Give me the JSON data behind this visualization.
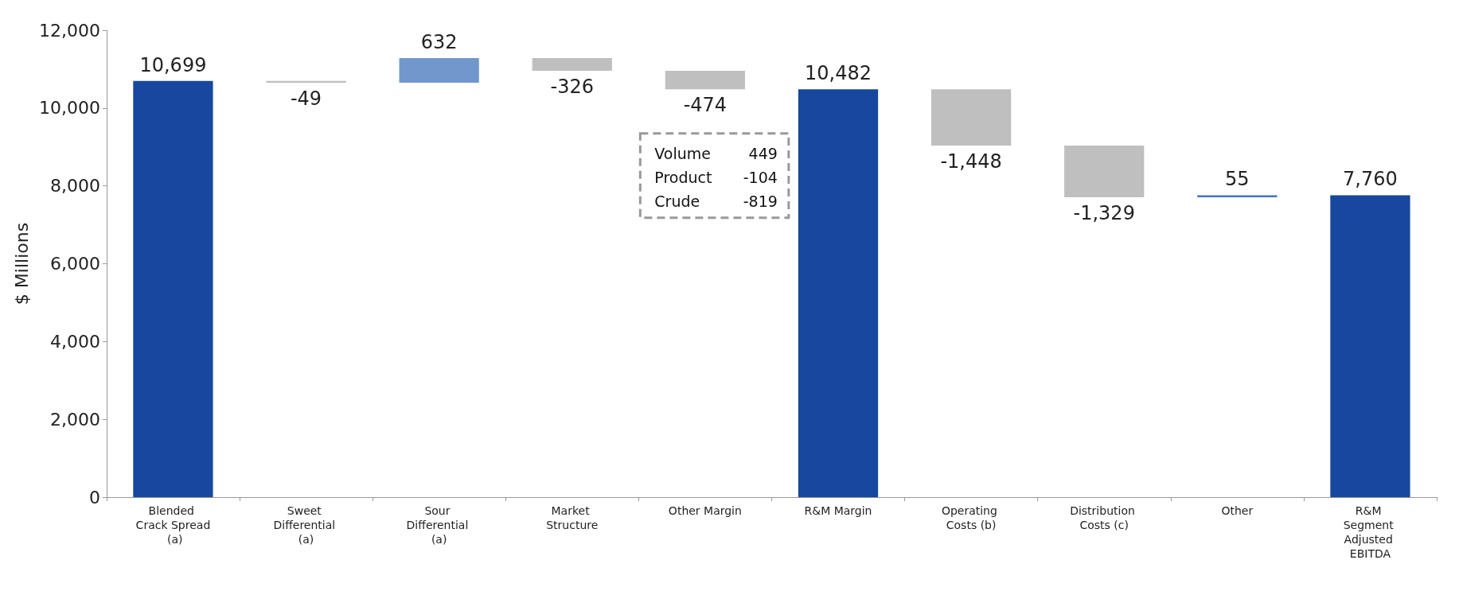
{
  "chart_data": {
    "type": "bar",
    "ylabel": "$ Millions",
    "categories": [
      "Blended Crack Spread (a)",
      "Sweet Differential (a)",
      "Sour Differential (a)",
      "Market Structure",
      "Other Margin",
      "R&M Margin",
      "Operating Costs (b)",
      "Distribution Costs (c)",
      "Other",
      "R&M Segment Adjusted EBITDA"
    ],
    "values": [
      10699,
      -49,
      632,
      -326,
      -474,
      10482,
      -1448,
      -1329,
      55,
      7760
    ],
    "base": [
      0,
      10699,
      10650,
      11282,
      10956,
      0,
      10482,
      9034,
      7705,
      0
    ],
    "colors": [
      "#17479e",
      "#bfbfbf",
      "#7297cc",
      "#bfbfbf",
      "#bfbfbf",
      "#17479e",
      "#bfbfbf",
      "#bfbfbf",
      "#4472c4",
      "#17479e"
    ],
    "ylim": [
      0,
      12000
    ],
    "yticks": [
      0,
      {
        "value": 2000,
        "label": "2,000"
      },
      {
        "value": 4000,
        "label": "4,000"
      },
      {
        "value": 6000,
        "label": "6,000"
      },
      {
        "value": 8000,
        "label": "8,000"
      },
      {
        "value": 10000,
        "label": "10,000"
      },
      {
        "value": 12000,
        "label": "12,000"
      }
    ],
    "value_labels": [
      "10,699",
      "-49",
      "632",
      "-326",
      "-474",
      "10,482",
      "-1,448",
      "-1,329",
      "55",
      "7,760"
    ],
    "grid": false,
    "annotations": [
      "Volume 449",
      "Product -104",
      "Crude -819"
    ]
  }
}
